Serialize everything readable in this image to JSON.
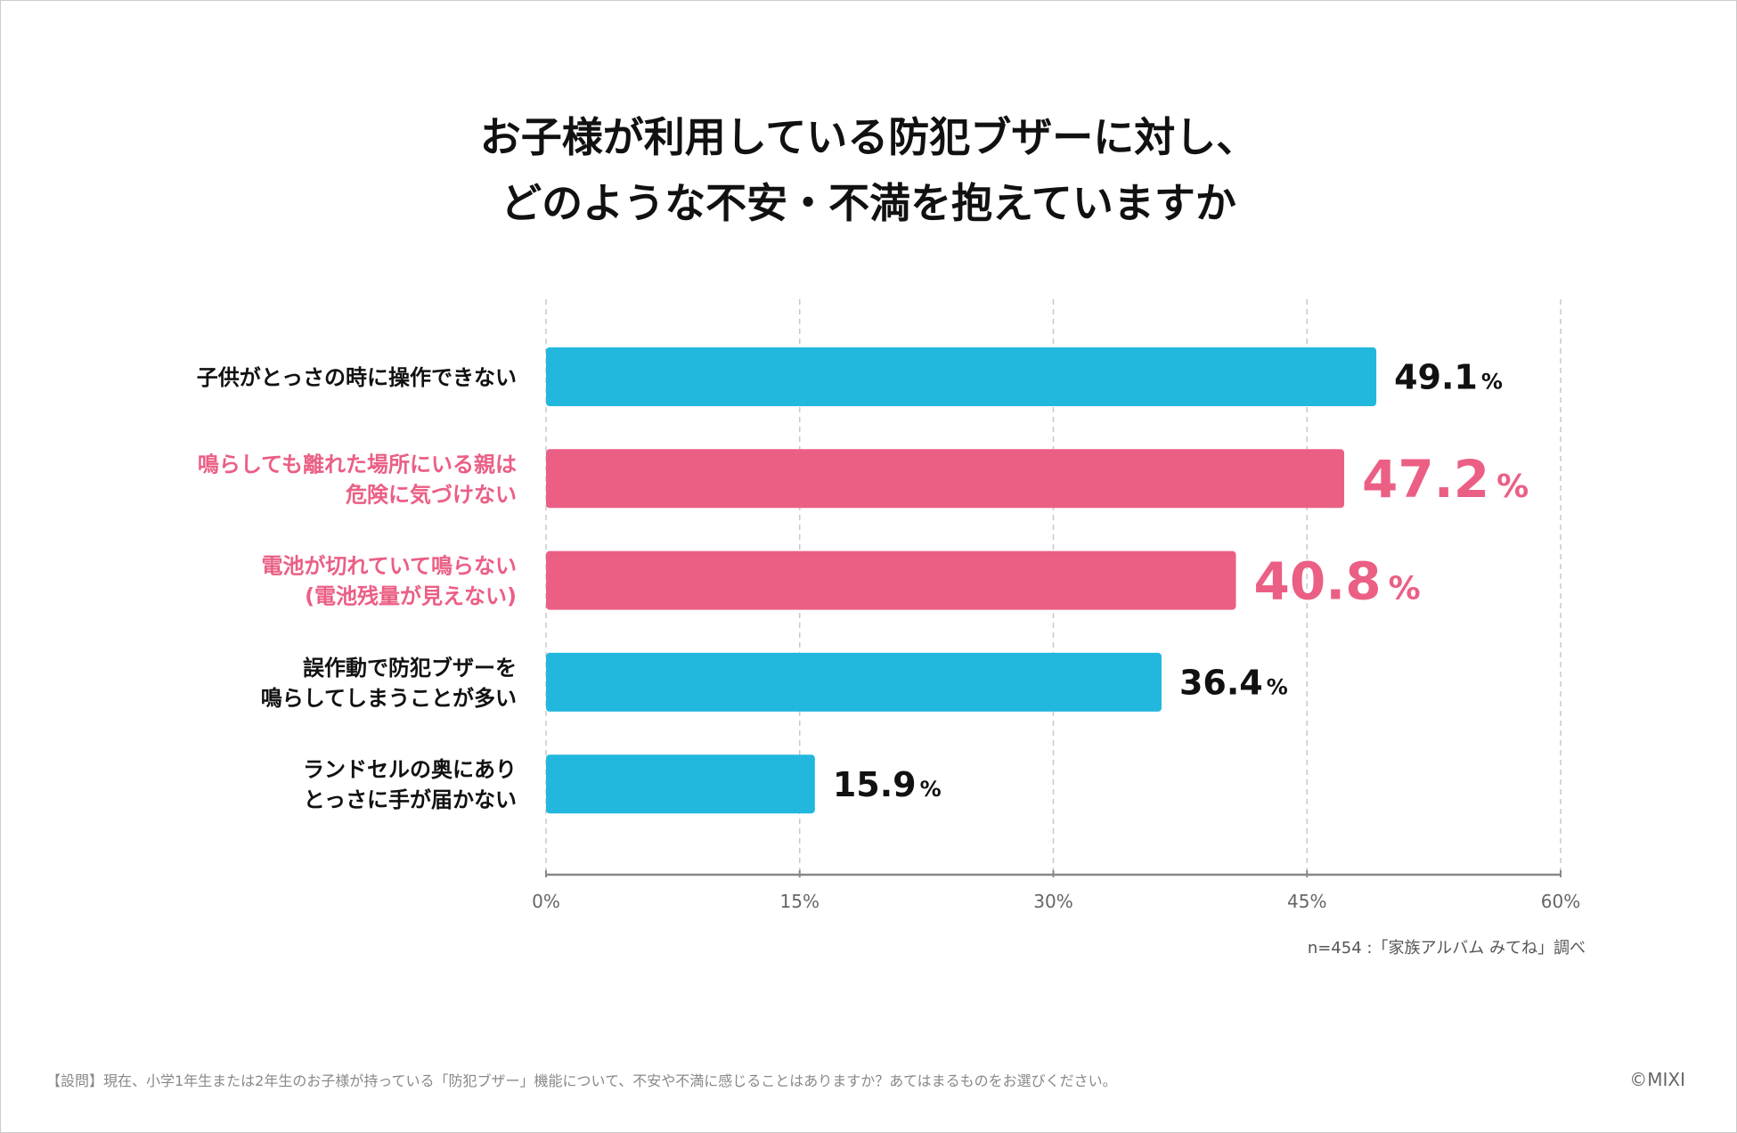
{
  "chart_data": {
    "type": "bar",
    "orientation": "horizontal",
    "title": [
      "お子様が利用している防犯ブザーに対し、",
      "どのような不安・不満を抱えていますか"
    ],
    "categories": [
      [
        "子供がとっさの時に操作できない"
      ],
      [
        "鳴らしても離れた場所にいる親は",
        "危険に気づけない"
      ],
      [
        "電池が切れていて鳴らない",
        "(電池残量が見えない)"
      ],
      [
        "誤作動で防犯ブザーを",
        "鳴らしてしまうことが多い"
      ],
      [
        "ランドセルの奥にあり",
        "とっさに手が届かない"
      ]
    ],
    "values": [
      49.1,
      47.2,
      40.8,
      36.4,
      15.9
    ],
    "highlight": [
      false,
      true,
      true,
      false,
      false
    ],
    "xlim": [
      0,
      60
    ],
    "xticks": [
      0,
      15,
      30,
      45,
      60
    ],
    "xtick_labels": [
      "0%",
      "15%",
      "30%",
      "45%",
      "60%"
    ],
    "unit": "%",
    "grid": true,
    "colors": {
      "normal": "#22b8de",
      "highlight": "#eb5f85",
      "text": "#111111"
    }
  },
  "source": "n=454 :「家族アルバム みてね」調べ",
  "footnote": "【設問】現在、小学1年生または2年生のお子様が持っている「防犯ブザー」機能について、不安や不満に感じることはありますか？あてはまるものをお選びください。",
  "copyright": "©MIXI"
}
